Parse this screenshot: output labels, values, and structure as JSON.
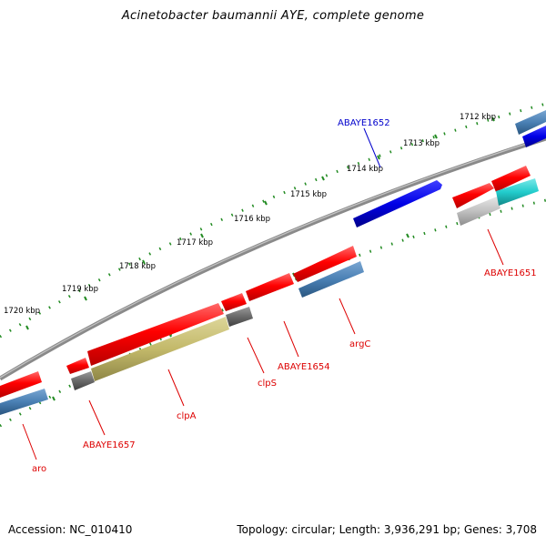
{
  "title": "Acinetobacter baumannii AYE, complete genome",
  "footer": {
    "accession": "Accession: NC_010410",
    "summary": "Topology: circular; Length: 3,936,291 bp; Genes: 3,708"
  },
  "colors": {
    "gene_red": "#ff0000",
    "gene_blue": "#0000e0",
    "gene_steel": "#4a80b4",
    "gene_gray": "#6a6a6a",
    "gene_olive": "#c8be70",
    "gene_cyan": "#22cccc",
    "gene_lightgray": "#c0c0c0",
    "backbone": "#777777",
    "tick_green": "#228b22",
    "label_red": "#dd0000",
    "label_blue": "#0000cc"
  },
  "kbp_labels": [
    "1712 kbp",
    "1713 kbp",
    "1714 kbp",
    "1715 kbp",
    "1716 kbp",
    "1717 kbp",
    "1718 kbp",
    "1719 kbp",
    "1720 kbp"
  ],
  "gene_labels": {
    "abaye1652": "ABAYE1652",
    "abaye1651": "ABAYE1651",
    "argc": "argC",
    "abaye1654": "ABAYE1654",
    "clps": "clpS",
    "clpa": "clpA",
    "abaye1657": "ABAYE1657",
    "aro": "aro"
  }
}
